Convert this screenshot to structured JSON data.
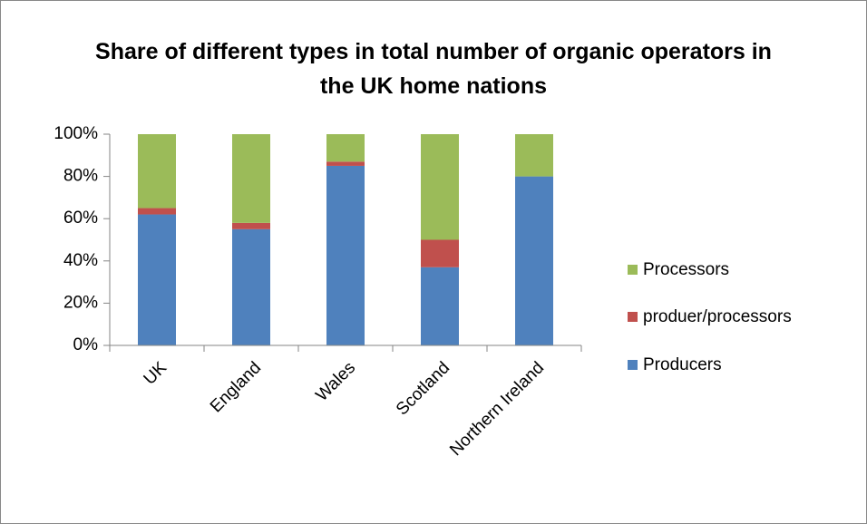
{
  "chart_data": {
    "type": "stacked_bar",
    "title": "Share of different types in total number of organic operators in the UK home nations",
    "categories": [
      "UK",
      "England",
      "Wales",
      "Scotland",
      "Northern Ireland"
    ],
    "series": [
      {
        "name": "Producers",
        "color": "#4f81bd",
        "values": [
          62,
          55,
          85,
          37,
          80
        ]
      },
      {
        "name": "produer/processors",
        "color": "#c0504d",
        "values": [
          3,
          3,
          2,
          13,
          0
        ]
      },
      {
        "name": "Processors",
        "color": "#9bbb59",
        "values": [
          35,
          42,
          13,
          50,
          20
        ]
      }
    ],
    "ylim": [
      0,
      100
    ],
    "yticks": [
      {
        "value": 0,
        "label": "0%"
      },
      {
        "value": 20,
        "label": "20%"
      },
      {
        "value": 40,
        "label": "40%"
      },
      {
        "value": 60,
        "label": "60%"
      },
      {
        "value": 80,
        "label": "80%"
      },
      {
        "value": 100,
        "label": "100%"
      }
    ],
    "legend": "right"
  }
}
